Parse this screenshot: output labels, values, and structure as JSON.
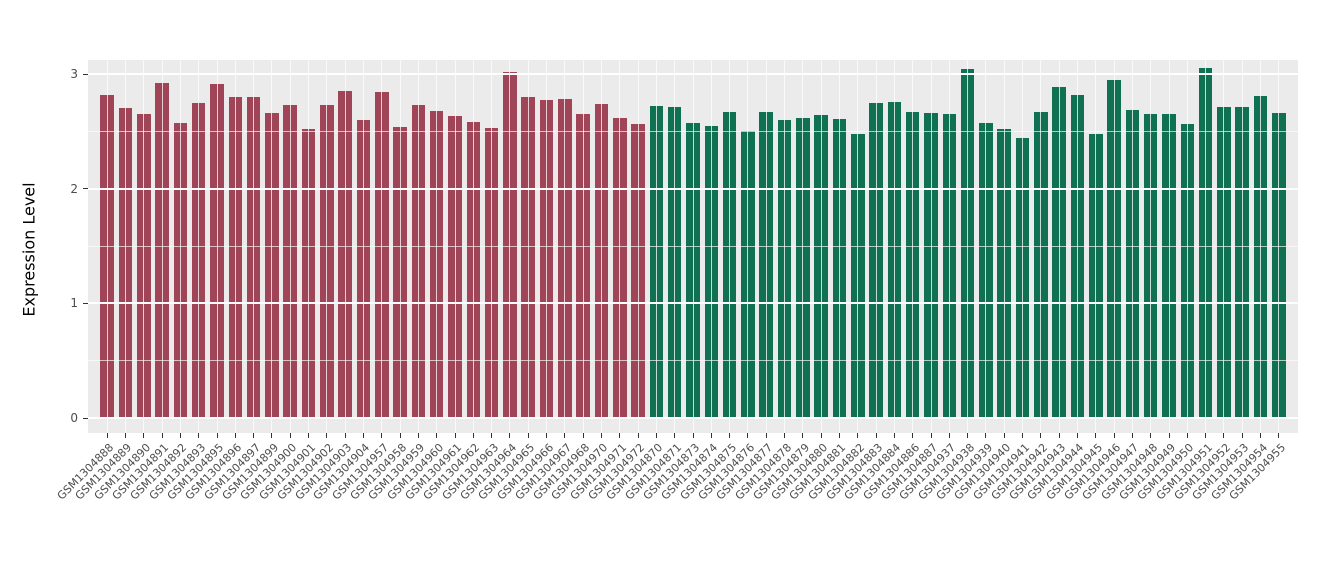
{
  "chart_data": {
    "type": "bar",
    "title": "",
    "xlabel": "",
    "ylabel": "Expression Level",
    "ylim": [
      0,
      3.12
    ],
    "yticks": [
      0,
      1,
      2,
      3
    ],
    "grid": "on",
    "legend": "none",
    "categories": [
      "GSM1304888",
      "GSM1304889",
      "GSM1304890",
      "GSM1304891",
      "GSM1304892",
      "GSM1304893",
      "GSM1304895",
      "GSM1304896",
      "GSM1304897",
      "GSM1304899",
      "GSM1304900",
      "GSM1304901",
      "GSM1304902",
      "GSM1304903",
      "GSM1304904",
      "GSM1304957",
      "GSM1304958",
      "GSM1304959",
      "GSM1304960",
      "GSM1304961",
      "GSM1304962",
      "GSM1304963",
      "GSM1304964",
      "GSM1304965",
      "GSM1304966",
      "GSM1304967",
      "GSM1304968",
      "GSM1304970",
      "GSM1304971",
      "GSM1304972",
      "GSM1304870",
      "GSM1304871",
      "GSM1304873",
      "GSM1304874",
      "GSM1304875",
      "GSM1304876",
      "GSM1304877",
      "GSM1304878",
      "GSM1304879",
      "GSM1304880",
      "GSM1304881",
      "GSM1304882",
      "GSM1304883",
      "GSM1304884",
      "GSM1304886",
      "GSM1304887",
      "GSM1304937",
      "GSM1304938",
      "GSM1304939",
      "GSM1304940",
      "GSM1304941",
      "GSM1304942",
      "GSM1304943",
      "GSM1304944",
      "GSM1304945",
      "GSM1304946",
      "GSM1304947",
      "GSM1304948",
      "GSM1304949",
      "GSM1304950",
      "GSM1304951",
      "GSM1304952",
      "GSM1304953",
      "GSM1304954",
      "GSM1304955"
    ],
    "values": [
      2.82,
      2.7,
      2.65,
      2.92,
      2.57,
      2.75,
      2.91,
      2.8,
      2.8,
      2.66,
      2.73,
      2.52,
      2.73,
      2.85,
      2.6,
      2.84,
      2.54,
      2.73,
      2.68,
      2.63,
      2.58,
      2.53,
      3.02,
      2.8,
      2.77,
      2.78,
      2.65,
      2.74,
      2.62,
      2.56,
      2.72,
      2.71,
      2.57,
      2.55,
      2.67,
      2.5,
      2.67,
      2.6,
      2.62,
      2.64,
      2.61,
      2.48,
      2.75,
      2.76,
      2.67,
      2.66,
      2.65,
      3.04,
      2.57,
      2.52,
      2.44,
      2.67,
      2.89,
      2.82,
      2.48,
      2.95,
      2.69,
      2.65,
      2.65,
      2.56,
      3.05,
      2.71,
      2.71,
      2.81,
      2.66
    ],
    "bar_groups": [
      "group1",
      "group1",
      "group1",
      "group1",
      "group1",
      "group1",
      "group1",
      "group1",
      "group1",
      "group1",
      "group1",
      "group1",
      "group1",
      "group1",
      "group1",
      "group1",
      "group1",
      "group1",
      "group1",
      "group1",
      "group1",
      "group1",
      "group1",
      "group1",
      "group1",
      "group1",
      "group1",
      "group1",
      "group1",
      "group1",
      "group2",
      "group2",
      "group2",
      "group2",
      "group2",
      "group2",
      "group2",
      "group2",
      "group2",
      "group2",
      "group2",
      "group2",
      "group2",
      "group2",
      "group2",
      "group2",
      "group2",
      "group2",
      "group2",
      "group2",
      "group2",
      "group2",
      "group2",
      "group2",
      "group2",
      "group2",
      "group2",
      "group2",
      "group2",
      "group2",
      "group2",
      "group2",
      "group2",
      "group2",
      "group2"
    ],
    "group_colors": {
      "group1": "#A04458",
      "group2": "#0F7052"
    },
    "panel_background": "#EBEBEB",
    "gridline_color": "#FFFFFF",
    "axis_text_color": "#4D4D4D"
  }
}
